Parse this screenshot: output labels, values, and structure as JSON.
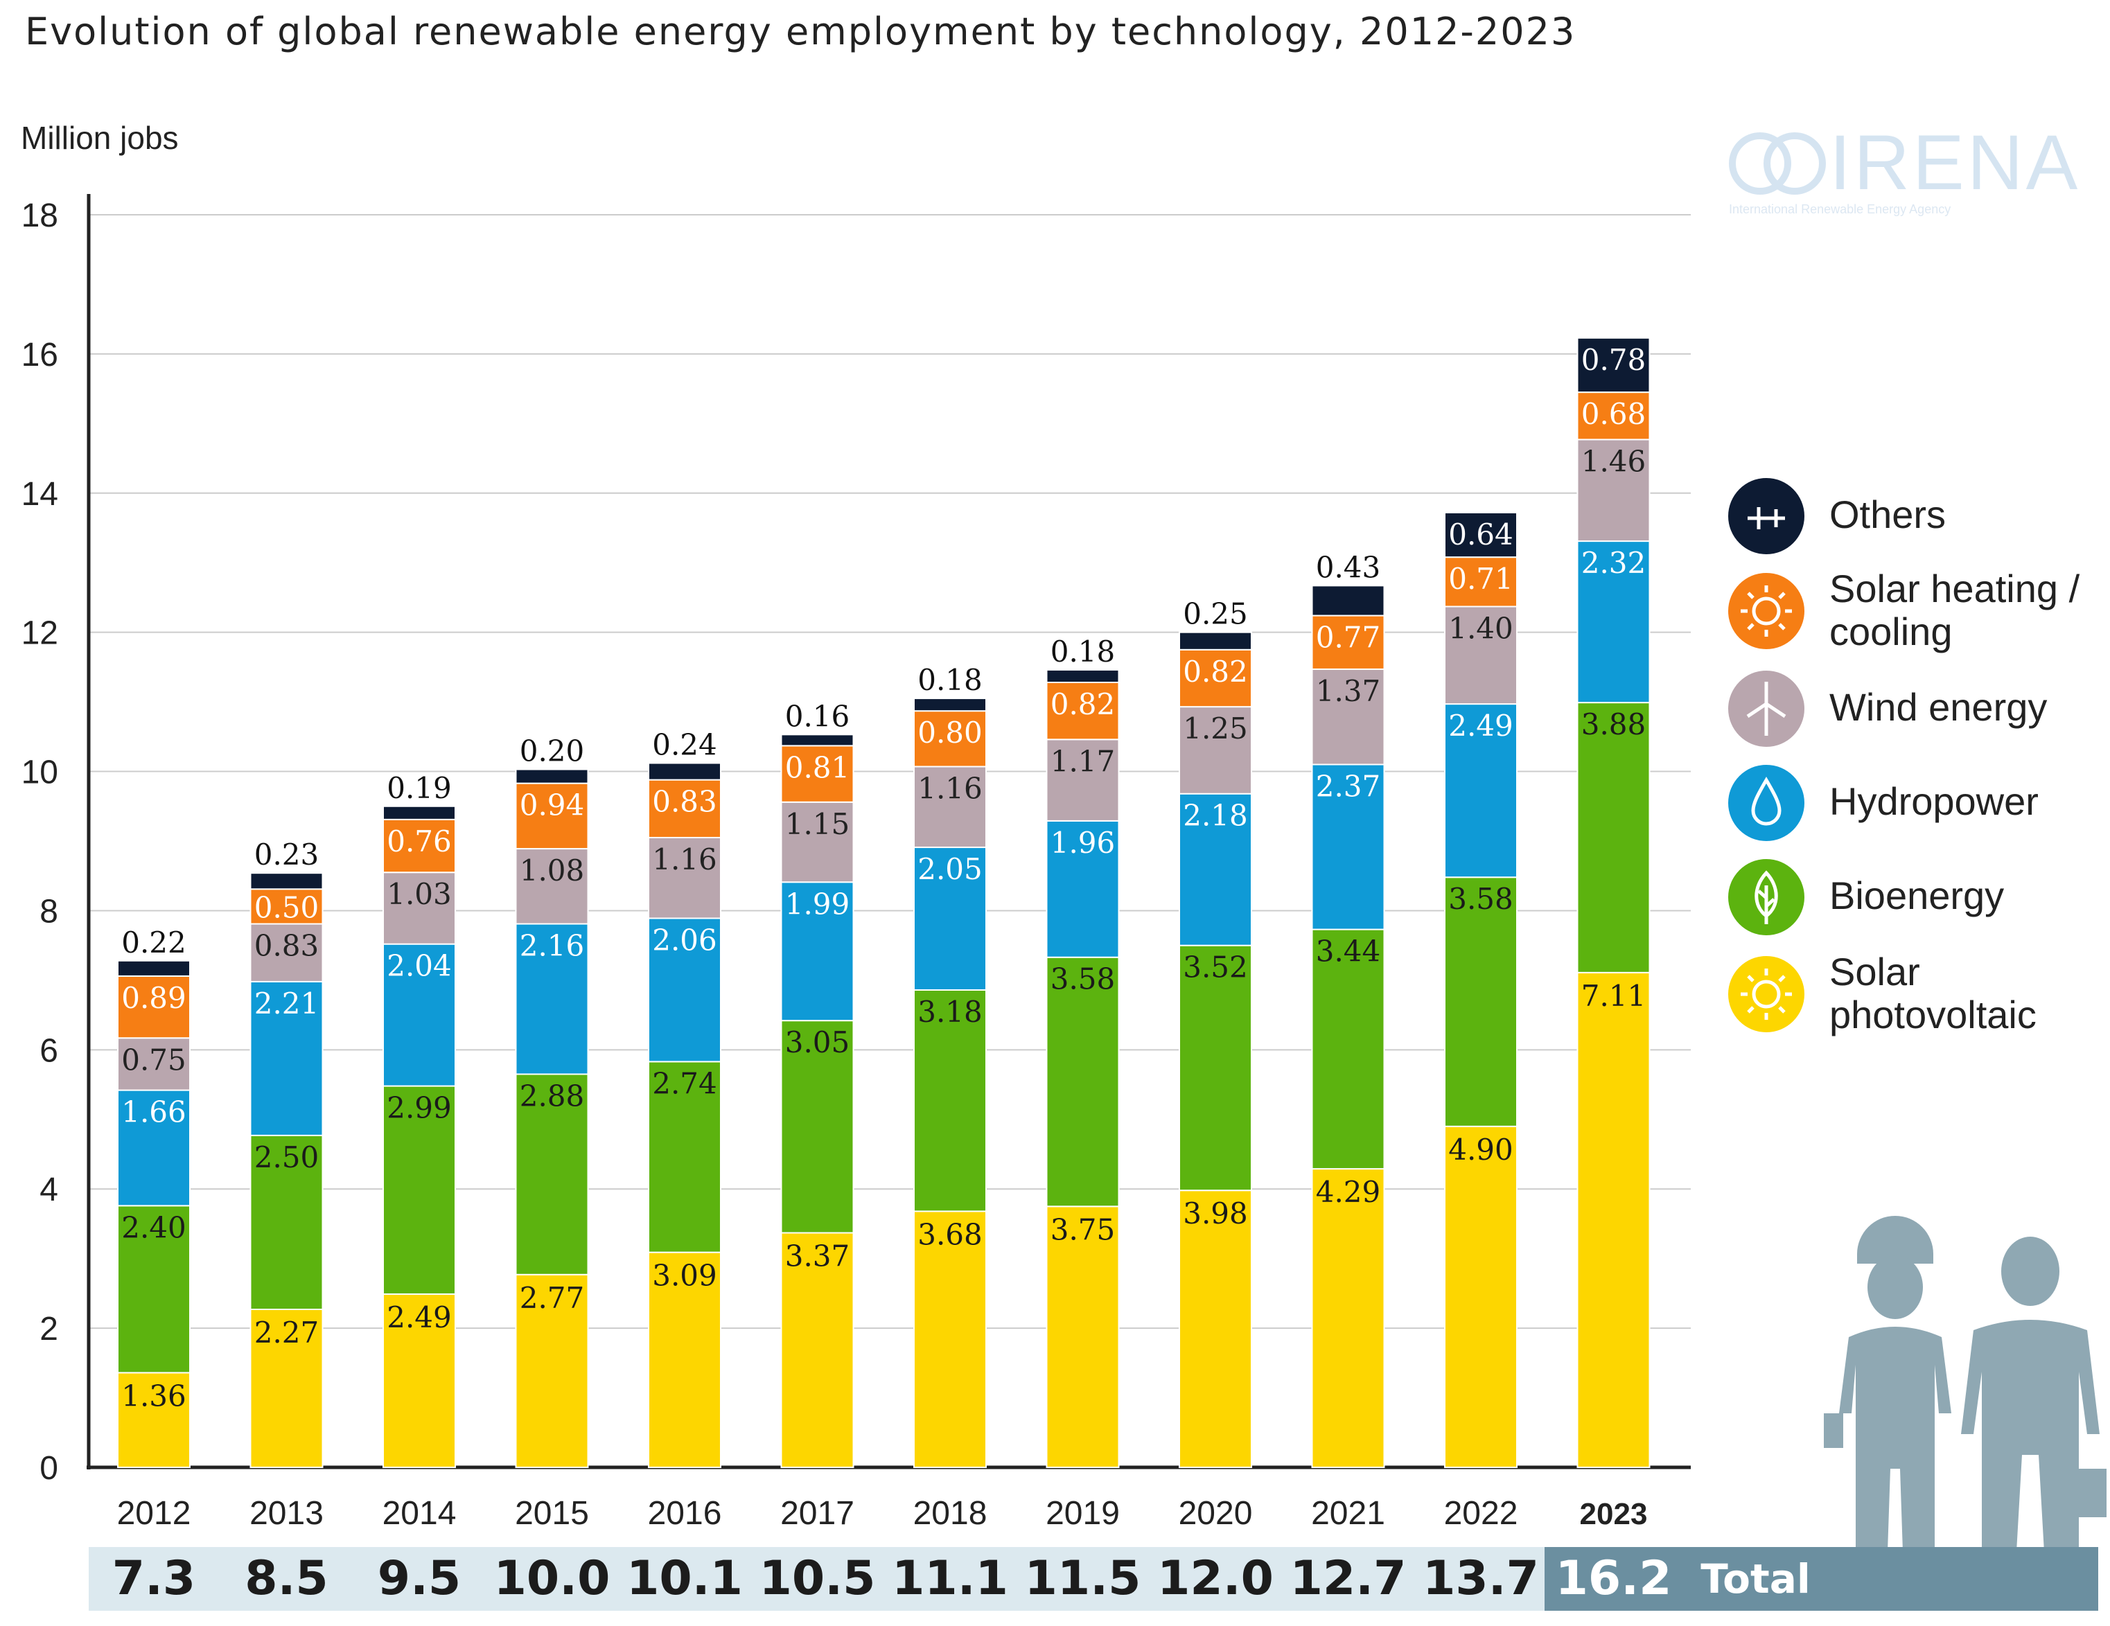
{
  "chart_data": {
    "type": "bar",
    "stacked": true,
    "title": "Evolution of global renewable energy employment by technology, 2012-2023",
    "ylabel": "Million jobs",
    "xlabel": "",
    "ylim": [
      0,
      18
    ],
    "yticks": [
      "0",
      "2",
      "4",
      "6",
      "8",
      "10",
      "12",
      "14",
      "16",
      "18"
    ],
    "grid": true,
    "legend_position": "right",
    "categories": [
      "2012",
      "2013",
      "2014",
      "2015",
      "2016",
      "2017",
      "2018",
      "2019",
      "2020",
      "2021",
      "2022",
      "2023"
    ],
    "highlight_category": "2023",
    "series": [
      {
        "name": "Solar photovoltaic",
        "legend_lines": [
          "Solar",
          "photovoltaic"
        ],
        "color": "#fdd600",
        "icon": "sun-icon",
        "values": [
          1.36,
          2.27,
          2.49,
          2.77,
          3.09,
          3.37,
          3.68,
          3.75,
          3.98,
          4.29,
          4.9,
          7.11
        ],
        "labels": [
          "1.36",
          "2.27",
          "2.49",
          "2.77",
          "3.09",
          "3.37",
          "3.68",
          "3.75",
          "3.98",
          "4.29",
          "4.90",
          "7.11"
        ]
      },
      {
        "name": "Bioenergy",
        "legend_lines": [
          "Bioenergy"
        ],
        "color": "#5cb30f",
        "icon": "leaf-icon",
        "values": [
          2.4,
          2.5,
          2.99,
          2.88,
          2.74,
          3.05,
          3.18,
          3.58,
          3.52,
          3.44,
          3.58,
          3.88
        ],
        "labels": [
          "2.40",
          "2.50",
          "2.99",
          "2.88",
          "2.74",
          "3.05",
          "3.18",
          "3.58",
          "3.52",
          "3.44",
          "3.58",
          "3.88"
        ]
      },
      {
        "name": "Hydropower",
        "legend_lines": [
          "Hydropower"
        ],
        "color": "#0f9ad6",
        "icon": "water-drop-icon",
        "values": [
          1.66,
          2.21,
          2.04,
          2.16,
          2.06,
          1.99,
          2.05,
          1.96,
          2.18,
          2.37,
          2.49,
          2.32
        ],
        "labels": [
          "1.66",
          "2.21",
          "2.04",
          "2.16",
          "2.06",
          "1.99",
          "2.05",
          "1.96",
          "2.18",
          "2.37",
          "2.49",
          "2.32"
        ]
      },
      {
        "name": "Wind energy",
        "legend_lines": [
          "Wind energy"
        ],
        "color": "#b9a6ae",
        "icon": "wind-turbine-icon",
        "values": [
          0.75,
          0.83,
          1.03,
          1.08,
          1.16,
          1.15,
          1.16,
          1.17,
          1.25,
          1.37,
          1.4,
          1.46
        ],
        "labels": [
          "0.75",
          "0.83",
          "1.03",
          "1.08",
          "1.16",
          "1.15",
          "1.16",
          "1.17",
          "1.25",
          "1.37",
          "1.40",
          "1.46"
        ]
      },
      {
        "name": "Solar heating / cooling",
        "legend_lines": [
          "Solar heating /",
          "cooling"
        ],
        "color": "#f67e14",
        "icon": "sun-icon",
        "values": [
          0.89,
          0.5,
          0.76,
          0.94,
          0.83,
          0.81,
          0.8,
          0.82,
          0.82,
          0.77,
          0.71,
          0.68
        ],
        "labels": [
          "0.89",
          "0.50",
          "0.76",
          "0.94",
          "0.83",
          "0.81",
          "0.80",
          "0.82",
          "0.82",
          "0.77",
          "0.71",
          "0.68"
        ]
      },
      {
        "name": "Others",
        "legend_lines": [
          "Others"
        ],
        "color": "#0d1b33",
        "icon": "plus-icon",
        "values": [
          0.22,
          0.23,
          0.19,
          0.2,
          0.24,
          0.16,
          0.18,
          0.18,
          0.25,
          0.43,
          0.64,
          0.78
        ],
        "labels": [
          "0.22",
          "0.23",
          "0.19",
          "0.20",
          "0.24",
          "0.16",
          "0.18",
          "0.18",
          "0.25",
          "0.43",
          "0.64",
          "0.78"
        ]
      }
    ],
    "totals": [
      "7.3",
      "8.5",
      "9.5",
      "10.0",
      "10.1",
      "10.5",
      "11.1",
      "11.5",
      "12.0",
      "12.7",
      "13.7",
      "16.2"
    ],
    "totals_label": "Total"
  },
  "logo": {
    "name": "IRENA",
    "subtitle": "International Renewable Energy Agency"
  },
  "colors": {
    "totals_band": "#dce9ef",
    "totals_highlight": "#6b8fa0",
    "illustration": "#8fa8b3",
    "axis": "#222222",
    "grid": "#cccccc"
  }
}
